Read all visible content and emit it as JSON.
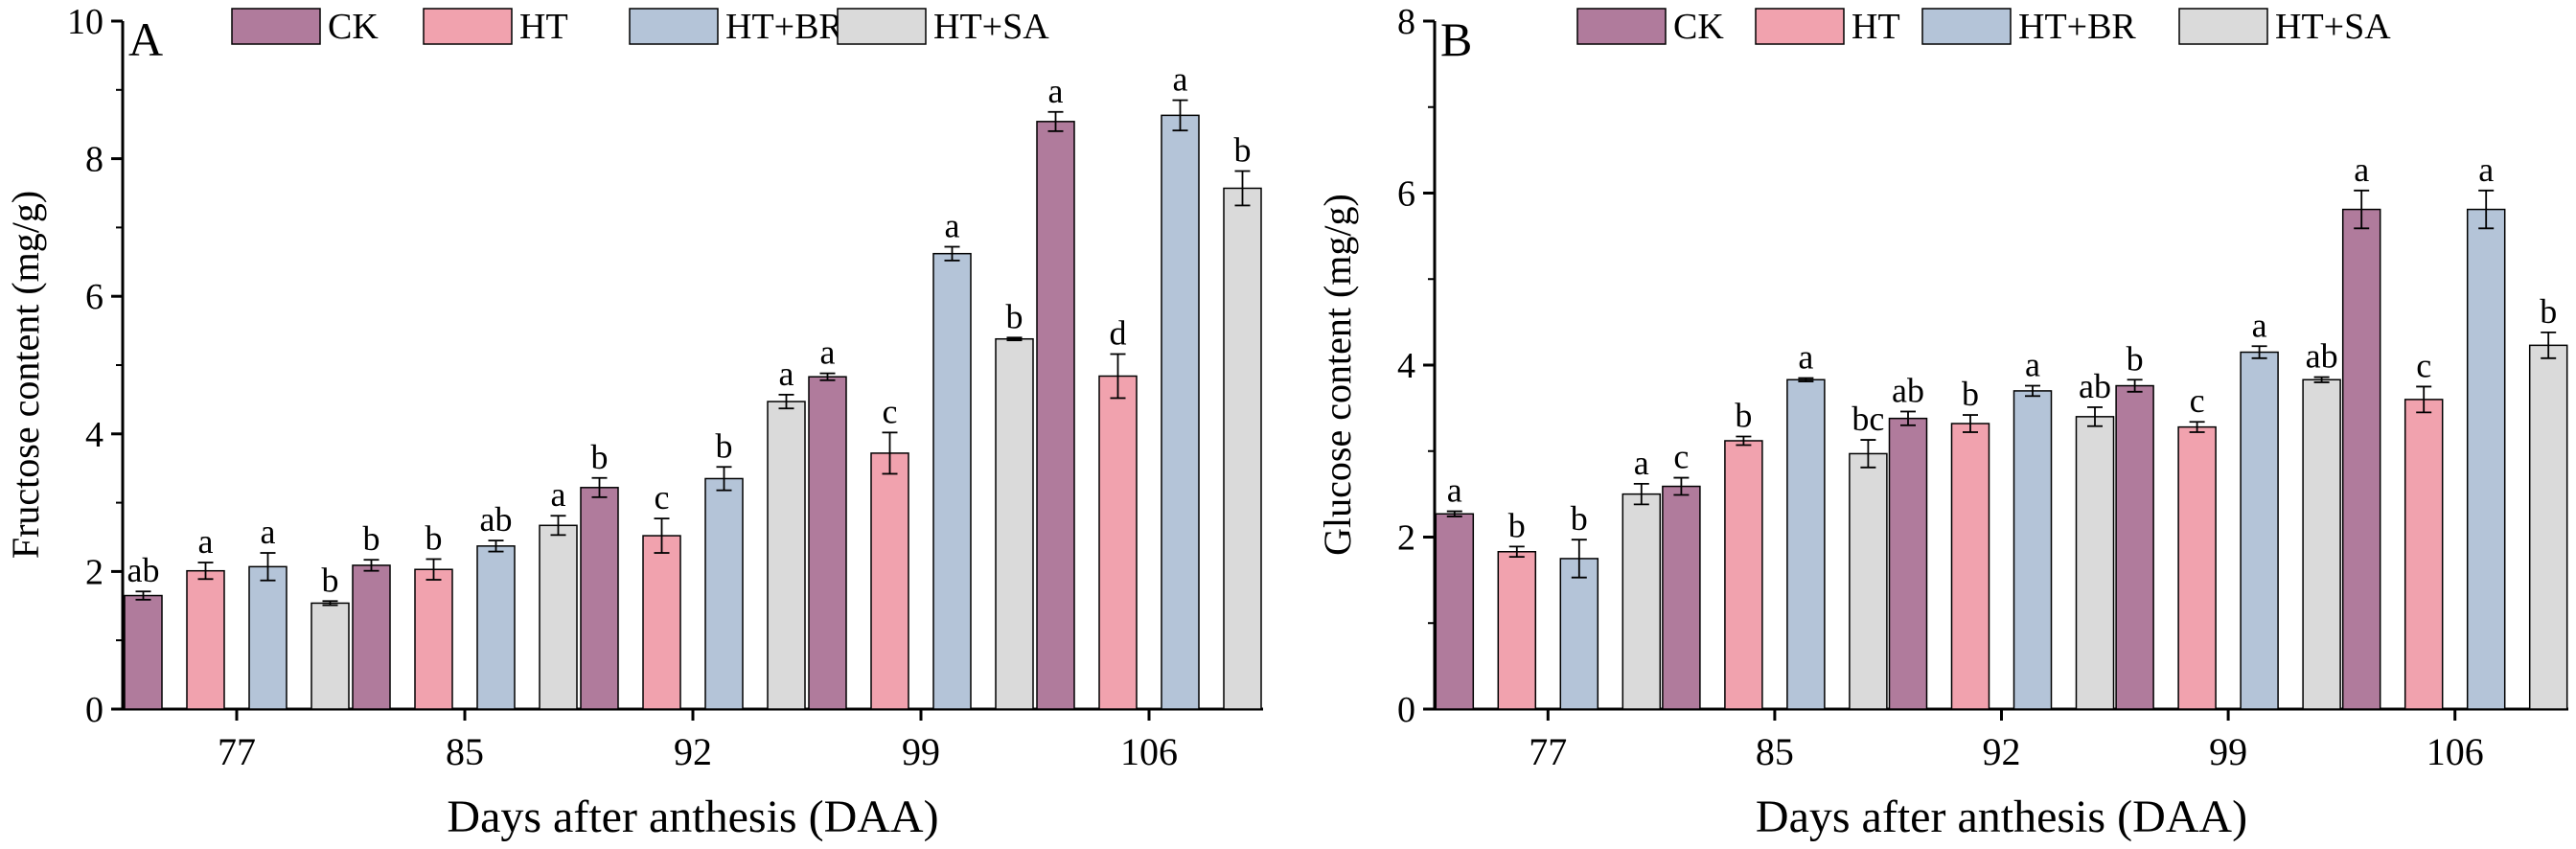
{
  "palette": {
    "CK": "#b07b9c",
    "HT": "#f1a2ae",
    "HT+BR": "#b4c4d8",
    "HT+SA": "#dadada",
    "stroke": "#000000"
  },
  "chart_data": [
    {
      "type": "bar",
      "panel_label": "A",
      "title": "",
      "xlabel": "Days after anthesis (DAA)",
      "ylabel": "Fructose content (mg/g)",
      "ylim": [
        0,
        10
      ],
      "yticks": [
        "0",
        "2",
        "4",
        "6",
        "8",
        "10"
      ],
      "categories": [
        "77",
        "85",
        "92",
        "99",
        "106"
      ],
      "legend": [
        "CK",
        "HT",
        "HT+BR",
        "HT+SA"
      ],
      "series": [
        {
          "name": "CK",
          "values": [
            1.65,
            2.09,
            3.22,
            4.83,
            8.54
          ],
          "errors": [
            0.06,
            0.08,
            0.14,
            0.05,
            0.14
          ],
          "letters": [
            "ab",
            "b",
            "b",
            "a",
            "a"
          ]
        },
        {
          "name": "HT",
          "values": [
            2.01,
            2.03,
            2.52,
            3.72,
            4.84
          ],
          "errors": [
            0.12,
            0.15,
            0.25,
            0.3,
            0.32
          ],
          "letters": [
            "a",
            "b",
            "c",
            "c",
            "d"
          ]
        },
        {
          "name": "HT+BR",
          "values": [
            2.07,
            2.37,
            3.35,
            6.62,
            8.63
          ],
          "errors": [
            0.2,
            0.08,
            0.17,
            0.1,
            0.22
          ],
          "letters": [
            "a",
            "ab",
            "b",
            "a",
            "a"
          ]
        },
        {
          "name": "HT+SA",
          "values": [
            1.54,
            2.67,
            4.47,
            5.38,
            7.57
          ],
          "errors": [
            0.03,
            0.14,
            0.1,
            0.02,
            0.25
          ],
          "letters": [
            "b",
            "a",
            "a",
            "b",
            "b"
          ]
        }
      ]
    },
    {
      "type": "bar",
      "panel_label": "B",
      "title": "",
      "xlabel": "Days after anthesis (DAA)",
      "ylabel": "Glucose content (mg/g)",
      "ylim": [
        0,
        8
      ],
      "yticks": [
        "0",
        "2",
        "4",
        "6",
        "8"
      ],
      "categories": [
        "77",
        "85",
        "92",
        "99",
        "106"
      ],
      "legend": [
        "CK",
        "HT",
        "HT+BR",
        "HT+SA"
      ],
      "series": [
        {
          "name": "CK",
          "values": [
            2.27,
            2.59,
            3.38,
            3.76,
            5.81
          ],
          "errors": [
            0.03,
            0.1,
            0.08,
            0.07,
            0.22
          ],
          "letters": [
            "a",
            "c",
            "ab",
            "b",
            "a"
          ]
        },
        {
          "name": "HT",
          "values": [
            1.83,
            3.12,
            3.32,
            3.28,
            3.6
          ],
          "errors": [
            0.06,
            0.05,
            0.1,
            0.06,
            0.15
          ],
          "letters": [
            "b",
            "b",
            "b",
            "c",
            "c"
          ]
        },
        {
          "name": "HT+BR",
          "values": [
            1.75,
            3.83,
            3.7,
            4.15,
            5.81
          ],
          "errors": [
            0.22,
            0.02,
            0.06,
            0.07,
            0.22
          ],
          "letters": [
            "b",
            "a",
            "a",
            "a",
            "a"
          ]
        },
        {
          "name": "HT+SA",
          "values": [
            2.5,
            2.97,
            3.4,
            3.83,
            4.23
          ],
          "errors": [
            0.12,
            0.16,
            0.11,
            0.03,
            0.15
          ],
          "letters": [
            "a",
            "bc",
            "ab",
            "ab",
            "b"
          ]
        }
      ]
    }
  ]
}
